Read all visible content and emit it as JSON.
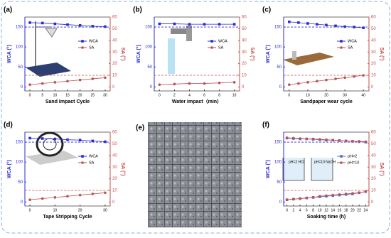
{
  "chart_data": [
    {
      "type": "line",
      "panel_label": "(a)",
      "xlabel": "Sand Impact Cycle",
      "ylabel": "WCA (°)",
      "y2label": "SA (°)",
      "x": [
        0,
        5,
        10,
        15,
        20,
        25,
        30
      ],
      "xlim": [
        -2,
        32
      ],
      "xticks": [
        0,
        5,
        10,
        15,
        20,
        25,
        30
      ],
      "ylim": [
        -10,
        175
      ],
      "yticks": [
        0,
        50,
        100,
        150
      ],
      "y2lim": [
        -3.4,
        60
      ],
      "y2ticks": [
        0,
        10,
        20,
        30,
        40,
        50,
        60
      ],
      "series": [
        {
          "name": "WCA",
          "color": "#2b2bd6",
          "marker": "square",
          "axis": "y",
          "values": [
            161,
            160,
            158,
            156,
            154,
            152,
            151
          ]
        },
        {
          "name": "SA",
          "color": "#c0504d",
          "marker": "circle",
          "axis": "y2",
          "values": [
            2,
            3,
            4,
            5,
            6,
            7,
            8
          ]
        }
      ],
      "hlines": [
        {
          "axis": "y",
          "value": 150,
          "color": "#2b2bd6"
        },
        {
          "axis": "y2",
          "value": 10,
          "color": "#c0504d"
        }
      ]
    },
    {
      "type": "line",
      "panel_label": "(b)",
      "xlabel": "Water impact（min）",
      "ylabel": "WCA (°)",
      "y2label": "SA (°)",
      "x": [
        0,
        2,
        4,
        6,
        8,
        10
      ],
      "xlim": [
        -0.7,
        10.7
      ],
      "xticks": [
        0,
        2,
        4,
        6,
        8,
        10
      ],
      "ylim": [
        -10,
        175
      ],
      "yticks": [
        0,
        50,
        100,
        150
      ],
      "y2lim": [
        -3.4,
        60
      ],
      "y2ticks": [
        0,
        10,
        20,
        30,
        40,
        50,
        60
      ],
      "series": [
        {
          "name": "WCA",
          "color": "#2b2bd6",
          "marker": "square",
          "axis": "y",
          "values": [
            158,
            158,
            157,
            157,
            157,
            157
          ]
        },
        {
          "name": "SA",
          "color": "#c0504d",
          "marker": "circle",
          "axis": "y2",
          "values": [
            2,
            2.5,
            3,
            3,
            3.5,
            4
          ]
        }
      ],
      "hlines": [
        {
          "axis": "y",
          "value": 150,
          "color": "#2b2bd6"
        },
        {
          "axis": "y2",
          "value": 10,
          "color": "#c0504d"
        }
      ]
    },
    {
      "type": "line",
      "panel_label": "(c)",
      "xlabel": "Sandpaper wear cycle",
      "ylabel": "WCA (°)",
      "y2label": "SA (°)",
      "x": [
        0,
        5,
        10,
        15,
        20,
        25,
        30,
        35,
        40
      ],
      "xlim": [
        -3,
        43
      ],
      "xticks": [
        0,
        10,
        20,
        30,
        40
      ],
      "ylim": [
        -10,
        175
      ],
      "yticks": [
        0,
        50,
        100,
        150
      ],
      "y2lim": [
        -3.4,
        60
      ],
      "y2ticks": [
        0,
        10,
        20,
        30,
        40,
        50,
        60
      ],
      "series": [
        {
          "name": "WCA",
          "color": "#2b2bd6",
          "marker": "square",
          "axis": "y",
          "values": [
            163,
            161,
            159,
            157,
            155,
            153,
            151,
            150,
            148
          ]
        },
        {
          "name": "SA",
          "color": "#c0504d",
          "marker": "circle",
          "axis": "y2",
          "values": [
            2,
            3,
            4,
            5,
            6,
            7,
            8,
            9,
            10
          ]
        }
      ],
      "hlines": [
        {
          "axis": "y",
          "value": 150,
          "color": "#2b2bd6"
        },
        {
          "axis": "y2",
          "value": 10,
          "color": "#c0504d"
        }
      ]
    },
    {
      "type": "line",
      "panel_label": "(d)",
      "xlabel": "Tape Stripping Cycle",
      "ylabel": "WCA (°)",
      "y2label": "SA (°)",
      "x": [
        0,
        5,
        10,
        15,
        20,
        25,
        30
      ],
      "xlim": [
        -2,
        32
      ],
      "xticks": [
        0,
        10,
        20,
        30
      ],
      "ylim": [
        -10,
        175
      ],
      "yticks": [
        0,
        50,
        100,
        150
      ],
      "y2lim": [
        -3.4,
        60
      ],
      "y2ticks": [
        0,
        10,
        20,
        30,
        40,
        50,
        60
      ],
      "series": [
        {
          "name": "WCA",
          "color": "#2b2bd6",
          "marker": "square",
          "axis": "y",
          "values": [
            160,
            159,
            158,
            156,
            155,
            153,
            151
          ]
        },
        {
          "name": "SA",
          "color": "#c0504d",
          "marker": "circle",
          "axis": "y2",
          "values": [
            2,
            3,
            4,
            5,
            6,
            7,
            8
          ]
        }
      ],
      "hlines": [
        {
          "axis": "y",
          "value": 150,
          "color": "#2b2bd6"
        },
        {
          "axis": "y2",
          "value": 10,
          "color": "#c0504d"
        }
      ]
    },
    {
      "type": "line",
      "panel_label": "(f)",
      "xlabel": "Soaking time (h)",
      "ylabel": "WCA (°)",
      "y2label": "SA (°)",
      "x": [
        0,
        2,
        4,
        6,
        8,
        10,
        12,
        14,
        16,
        18,
        20,
        22,
        24
      ],
      "xlim": [
        -1,
        25
      ],
      "xticks": [
        0,
        2,
        4,
        6,
        8,
        10,
        12,
        14,
        16,
        18,
        20,
        22,
        24
      ],
      "ylim": [
        -10,
        175
      ],
      "yticks": [
        0,
        50,
        100,
        150
      ],
      "y2lim": [
        -3.4,
        60
      ],
      "y2ticks": [
        0,
        10,
        20,
        30,
        40,
        50,
        60
      ],
      "annotations": [
        "pH=2 HCl",
        "pH=10 NaOH"
      ],
      "series": [
        {
          "name": "pH=2",
          "color": "#4a6fd6",
          "marker": "square",
          "axis": "y",
          "values": [
            160,
            159,
            158,
            158,
            157,
            156,
            155,
            155,
            154,
            153,
            152,
            151,
            150
          ]
        },
        {
          "name": "pH=10",
          "color": "#c0504d",
          "marker": "circle",
          "axis": "y",
          "values": [
            161,
            160,
            159,
            158,
            158,
            157,
            156,
            155,
            154,
            153,
            152,
            152,
            151
          ]
        },
        {
          "name": "pH=2",
          "color": "#4a6fd6",
          "marker": "square",
          "axis": "y2",
          "values": [
            2,
            2.5,
            3,
            3.5,
            4,
            4.5,
            5,
            5.5,
            6,
            6.5,
            7,
            8,
            9
          ]
        },
        {
          "name": "pH=10",
          "color": "#c0504d",
          "marker": "circle",
          "axis": "y2",
          "values": [
            2,
            2.5,
            3,
            3.5,
            4,
            5,
            5.5,
            6,
            6.5,
            7,
            7.5,
            8,
            9
          ]
        }
      ],
      "hlines": [
        {
          "axis": "y",
          "value": 150,
          "color": "#2b2bd6"
        },
        {
          "axis": "y2",
          "value": 10,
          "color": "#c0504d"
        }
      ]
    }
  ],
  "image_panel": {
    "label": "(e)"
  }
}
